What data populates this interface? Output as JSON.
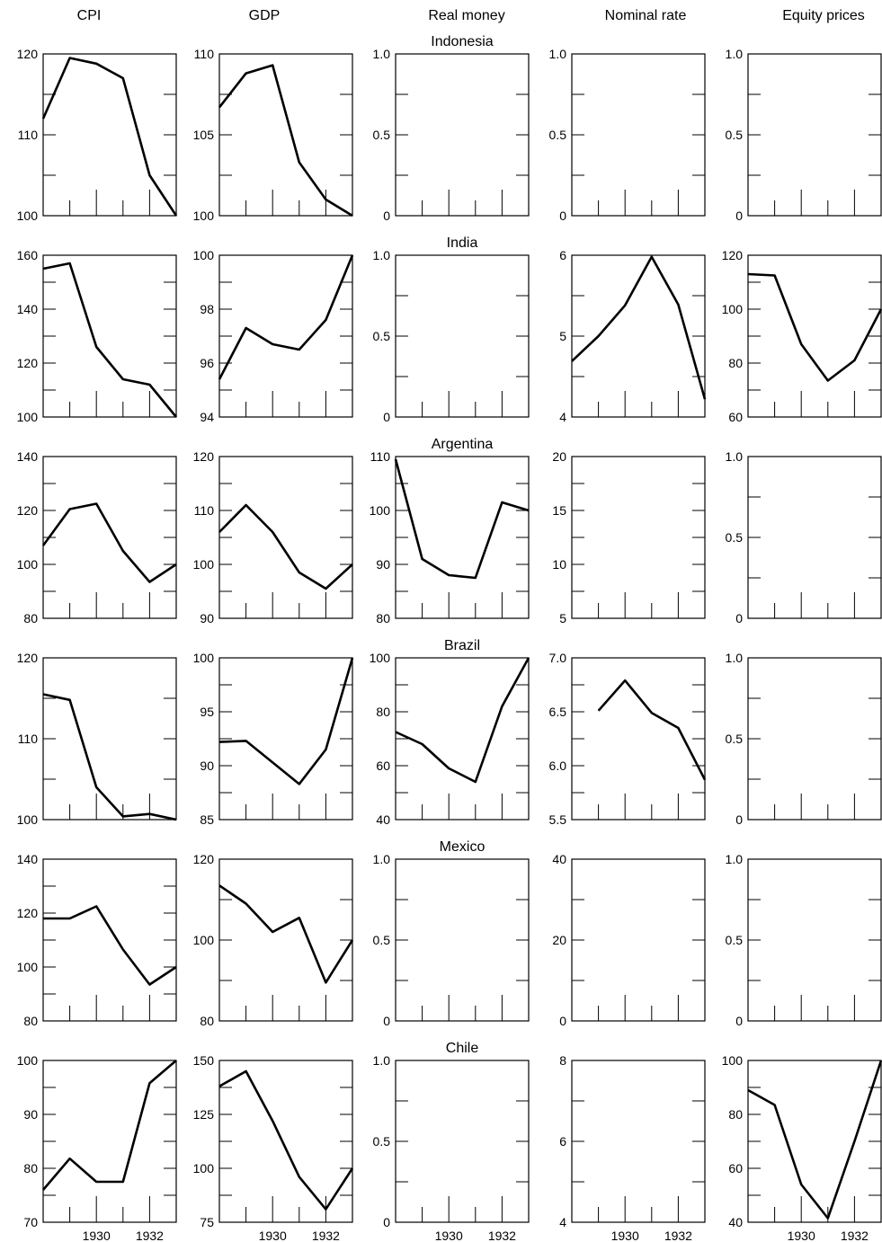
{
  "columns": [
    "CPI",
    "GDP",
    "Real money",
    "Nominal rate",
    "Equity prices"
  ],
  "rows": [
    "Indonesia",
    "India",
    "Argentina",
    "Brazil",
    "Mexico",
    "Chile"
  ],
  "x_tick_labels": [
    "1930",
    "1932"
  ],
  "chart_data": [
    {
      "type": "line",
      "country": "Indonesia",
      "variable": "CPI",
      "ylim": [
        100,
        120
      ],
      "yticks": [
        "100",
        "110",
        "120"
      ],
      "x": [
        1928,
        1929,
        1930,
        1931,
        1932,
        1933
      ],
      "values": [
        112.0,
        119.5,
        118.8,
        117.0,
        105.0,
        100.0
      ]
    },
    {
      "type": "line",
      "country": "Indonesia",
      "variable": "GDP",
      "ylim": [
        100,
        110
      ],
      "yticks": [
        "100",
        "105",
        "110"
      ],
      "x": [
        1928,
        1929,
        1930,
        1931,
        1932,
        1933
      ],
      "values": [
        106.7,
        108.8,
        109.3,
        103.3,
        101.0,
        100.0
      ]
    },
    {
      "type": "line",
      "country": "Indonesia",
      "variable": "Real money",
      "ylim": [
        0,
        1
      ],
      "yticks": [
        "0",
        "0.5",
        "1.0"
      ],
      "x": [],
      "values": []
    },
    {
      "type": "line",
      "country": "Indonesia",
      "variable": "Nominal rate",
      "ylim": [
        0,
        1
      ],
      "yticks": [
        "0",
        "0.5",
        "1.0"
      ],
      "x": [],
      "values": []
    },
    {
      "type": "line",
      "country": "Indonesia",
      "variable": "Equity prices",
      "ylim": [
        0,
        1
      ],
      "yticks": [
        "0",
        "0.5",
        "1.0"
      ],
      "x": [],
      "values": []
    },
    {
      "type": "line",
      "country": "India",
      "variable": "CPI",
      "ylim": [
        100,
        160
      ],
      "yticks": [
        "100",
        "120",
        "140",
        "160"
      ],
      "x": [
        1928,
        1929,
        1930,
        1931,
        1932,
        1933
      ],
      "values": [
        155,
        157,
        126,
        114,
        112,
        100
      ]
    },
    {
      "type": "line",
      "country": "India",
      "variable": "GDP",
      "ylim": [
        94,
        100
      ],
      "yticks": [
        "94",
        "96",
        "98",
        "100"
      ],
      "x": [
        1928,
        1929,
        1930,
        1931,
        1932,
        1933
      ],
      "values": [
        95.4,
        97.3,
        96.7,
        96.5,
        97.6,
        100.0
      ]
    },
    {
      "type": "line",
      "country": "India",
      "variable": "Real money",
      "ylim": [
        0,
        1
      ],
      "yticks": [
        "0",
        "0.5",
        "1.0"
      ],
      "x": [],
      "values": []
    },
    {
      "type": "line",
      "country": "India",
      "variable": "Nominal rate",
      "ylim": [
        4,
        6
      ],
      "yticks": [
        "4",
        "5",
        "6"
      ],
      "x": [
        1928,
        1929,
        1930,
        1931,
        1932,
        1933
      ],
      "values": [
        4.69,
        5.0,
        5.38,
        5.98,
        5.39,
        4.22
      ]
    },
    {
      "type": "line",
      "country": "India",
      "variable": "Equity prices",
      "ylim": [
        60,
        120
      ],
      "yticks": [
        "60",
        "80",
        "100",
        "120"
      ],
      "x": [
        1928,
        1929,
        1930,
        1931,
        1932,
        1933
      ],
      "values": [
        113,
        112.5,
        87,
        73.5,
        81,
        100
      ]
    },
    {
      "type": "line",
      "country": "Argentina",
      "variable": "CPI",
      "ylim": [
        80,
        140
      ],
      "yticks": [
        "80",
        "100",
        "120",
        "140"
      ],
      "x": [
        1928,
        1929,
        1930,
        1931,
        1932,
        1933
      ],
      "values": [
        107,
        120.5,
        122.5,
        105,
        93.5,
        100
      ]
    },
    {
      "type": "line",
      "country": "Argentina",
      "variable": "GDP",
      "ylim": [
        90,
        120
      ],
      "yticks": [
        "90",
        "100",
        "110",
        "120"
      ],
      "x": [
        1928,
        1929,
        1930,
        1931,
        1932,
        1933
      ],
      "values": [
        106,
        111,
        106,
        98.5,
        95.5,
        100
      ]
    },
    {
      "type": "line",
      "country": "Argentina",
      "variable": "Real money",
      "ylim": [
        80,
        110
      ],
      "yticks": [
        "80",
        "90",
        "100",
        "110"
      ],
      "x": [
        1928,
        1929,
        1930,
        1931,
        1932,
        1933
      ],
      "values": [
        109.5,
        91,
        88,
        87.5,
        101.5,
        100
      ]
    },
    {
      "type": "line",
      "country": "Argentina",
      "variable": "Nominal rate",
      "ylim": [
        5,
        20
      ],
      "yticks": [
        "5",
        "10",
        "15",
        "20"
      ],
      "x": [],
      "values": []
    },
    {
      "type": "line",
      "country": "Argentina",
      "variable": "Equity prices",
      "ylim": [
        0,
        1
      ],
      "yticks": [
        "0",
        "0.5",
        "1.0"
      ],
      "x": [],
      "values": []
    },
    {
      "type": "line",
      "country": "Brazil",
      "variable": "CPI",
      "ylim": [
        100,
        120
      ],
      "yticks": [
        "100",
        "110",
        "120"
      ],
      "x": [
        1928,
        1929,
        1930,
        1931,
        1932,
        1933
      ],
      "values": [
        115.5,
        114.8,
        104.0,
        100.4,
        100.7,
        100.0
      ]
    },
    {
      "type": "line",
      "country": "Brazil",
      "variable": "GDP",
      "ylim": [
        85,
        100
      ],
      "yticks": [
        "85",
        "90",
        "95",
        "100"
      ],
      "x": [
        1928,
        1929,
        1930,
        1931,
        1932,
        1933
      ],
      "values": [
        92.2,
        92.3,
        90.3,
        88.3,
        91.5,
        100.0
      ]
    },
    {
      "type": "line",
      "country": "Brazil",
      "variable": "Real money",
      "ylim": [
        40,
        100
      ],
      "yticks": [
        "40",
        "60",
        "80",
        "100"
      ],
      "x": [
        1928,
        1929,
        1930,
        1931,
        1932,
        1933
      ],
      "values": [
        72.5,
        68,
        59,
        54,
        82,
        100
      ]
    },
    {
      "type": "line",
      "country": "Brazil",
      "variable": "Nominal rate",
      "ylim": [
        5.5,
        7.0
      ],
      "yticks": [
        "5.5",
        "6.0",
        "6.5",
        "7.0"
      ],
      "x": [
        1929,
        1930,
        1931,
        1932,
        1933
      ],
      "values": [
        6.51,
        6.79,
        6.49,
        6.35,
        5.87
      ]
    },
    {
      "type": "line",
      "country": "Brazil",
      "variable": "Equity prices",
      "ylim": [
        0,
        1
      ],
      "yticks": [
        "0",
        "0.5",
        "1.0"
      ],
      "x": [],
      "values": []
    },
    {
      "type": "line",
      "country": "Mexico",
      "variable": "CPI",
      "ylim": [
        80,
        140
      ],
      "yticks": [
        "80",
        "100",
        "120",
        "140"
      ],
      "x": [
        1928,
        1929,
        1930,
        1931,
        1932,
        1933
      ],
      "values": [
        118,
        118,
        122.5,
        106.5,
        93.5,
        100
      ]
    },
    {
      "type": "line",
      "country": "Mexico",
      "variable": "GDP",
      "ylim": [
        80,
        120
      ],
      "yticks": [
        "80",
        "100",
        "120"
      ],
      "x": [
        1928,
        1929,
        1930,
        1931,
        1932,
        1933
      ],
      "values": [
        113.5,
        109,
        102,
        105.5,
        89.5,
        100
      ]
    },
    {
      "type": "line",
      "country": "Mexico",
      "variable": "Real money",
      "ylim": [
        0,
        1
      ],
      "yticks": [
        "0",
        "0.5",
        "1.0"
      ],
      "x": [],
      "values": []
    },
    {
      "type": "line",
      "country": "Mexico",
      "variable": "Nominal rate",
      "ylim": [
        0,
        40
      ],
      "yticks": [
        "0",
        "20",
        "40"
      ],
      "x": [],
      "values": []
    },
    {
      "type": "line",
      "country": "Mexico",
      "variable": "Equity prices",
      "ylim": [
        0,
        1
      ],
      "yticks": [
        "0",
        "0.5",
        "1.0"
      ],
      "x": [],
      "values": []
    },
    {
      "type": "line",
      "country": "Chile",
      "variable": "CPI",
      "ylim": [
        70,
        100
      ],
      "yticks": [
        "70",
        "80",
        "90",
        "100"
      ],
      "x": [
        1928,
        1929,
        1930,
        1931,
        1932,
        1933
      ],
      "values": [
        76,
        81.8,
        77.5,
        77.5,
        95.8,
        100
      ]
    },
    {
      "type": "line",
      "country": "Chile",
      "variable": "GDP",
      "ylim": [
        75,
        150
      ],
      "yticks": [
        "75",
        "100",
        "125",
        "150"
      ],
      "x": [
        1928,
        1929,
        1930,
        1931,
        1932,
        1933
      ],
      "values": [
        138,
        145,
        122,
        96,
        81,
        100
      ]
    },
    {
      "type": "line",
      "country": "Chile",
      "variable": "Real money",
      "ylim": [
        0,
        1
      ],
      "yticks": [
        "0",
        "0.5",
        "1.0"
      ],
      "x": [],
      "values": []
    },
    {
      "type": "line",
      "country": "Chile",
      "variable": "Nominal rate",
      "ylim": [
        4,
        8
      ],
      "yticks": [
        "4",
        "6",
        "8"
      ],
      "x": [],
      "values": []
    },
    {
      "type": "line",
      "country": "Chile",
      "variable": "Equity prices",
      "ylim": [
        40,
        100
      ],
      "yticks": [
        "40",
        "60",
        "80",
        "100"
      ],
      "x": [
        1928,
        1929,
        1930,
        1931,
        1932,
        1933
      ],
      "values": [
        89,
        83.5,
        54,
        41.5,
        70,
        100
      ]
    }
  ]
}
